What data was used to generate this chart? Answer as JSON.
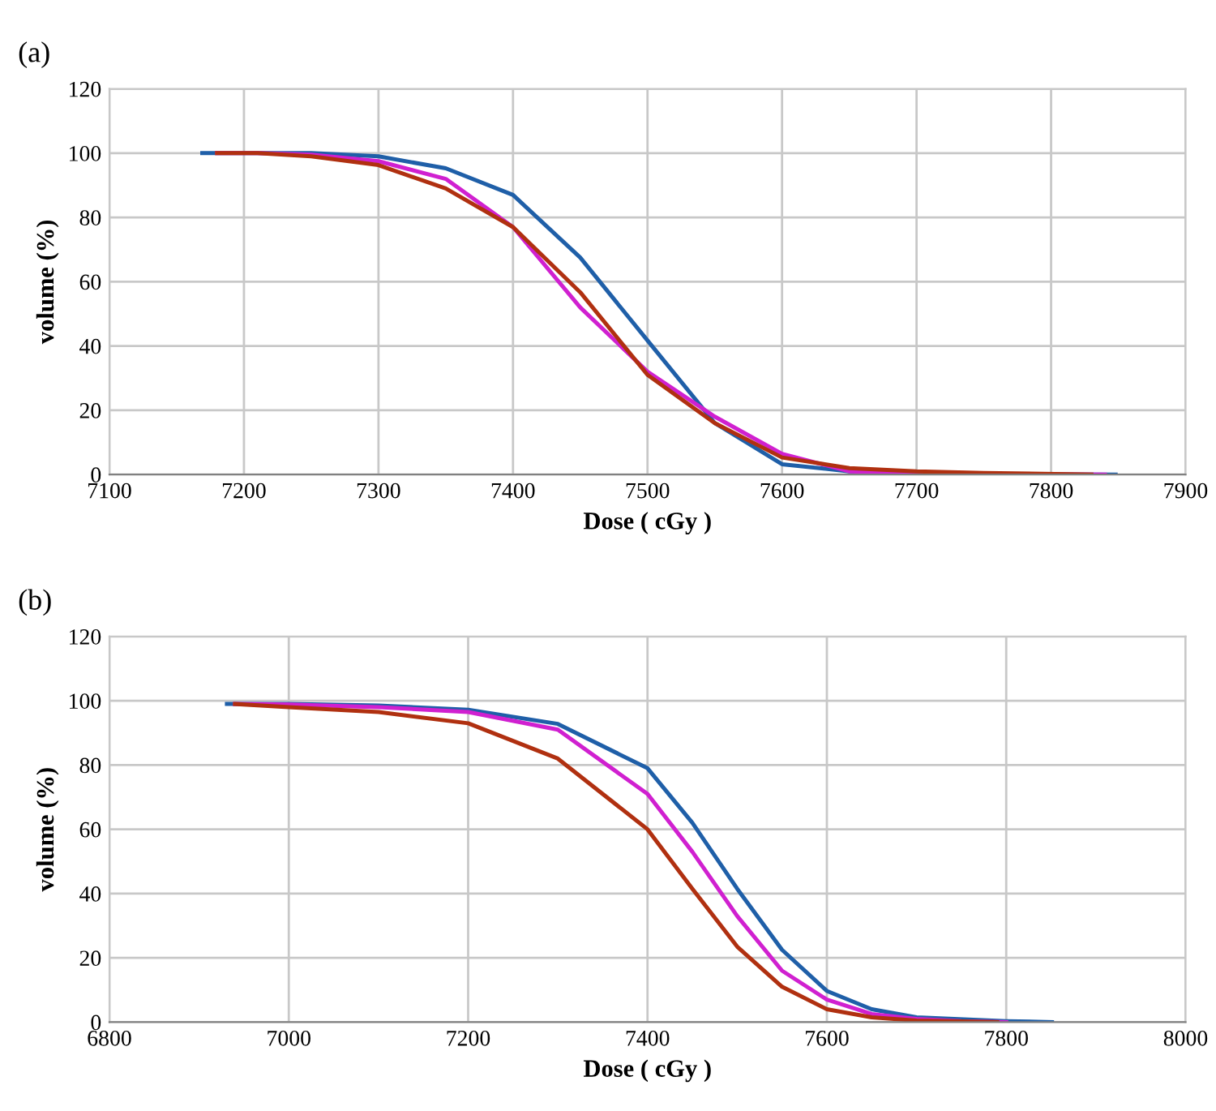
{
  "chart_data": [
    {
      "type": "line",
      "title": "(a)",
      "xlabel": "Dose ( cGy )",
      "ylabel": "volume (%)",
      "xlim": [
        7100,
        7900
      ],
      "xticks": [
        7100,
        7200,
        7300,
        7400,
        7500,
        7600,
        7700,
        7800,
        7900
      ],
      "ylim": [
        0,
        120
      ],
      "yticks": [
        0,
        20,
        40,
        60,
        80,
        100,
        120
      ],
      "grid": true,
      "legend": false,
      "series": [
        {
          "color": "#1f5fa8",
          "x": [
            7169,
            7200,
            7250,
            7300,
            7350,
            7400,
            7450,
            7500,
            7550,
            7600,
            7650,
            7700,
            7750,
            7848
          ],
          "values": [
            100,
            100,
            100,
            99,
            95.3,
            87,
            67.5,
            41.7,
            16,
            3.2,
            1,
            0.3,
            0.1,
            0
          ]
        },
        {
          "color": "#d020d0",
          "x": [
            7180,
            7210,
            7250,
            7300,
            7350,
            7400,
            7450,
            7500,
            7550,
            7600,
            7650,
            7700,
            7750,
            7840
          ],
          "values": [
            100,
            100,
            99.5,
            97.5,
            92,
            77,
            52,
            32,
            18,
            6.4,
            1,
            0.3,
            0.1,
            0
          ]
        },
        {
          "color": "#b03010",
          "x": [
            7180,
            7210,
            7250,
            7300,
            7350,
            7400,
            7450,
            7500,
            7550,
            7600,
            7650,
            7700,
            7750,
            7830
          ],
          "values": [
            100,
            100,
            99,
            96.3,
            89,
            77,
            56.7,
            31,
            16,
            5.3,
            2,
            1,
            0.5,
            0
          ]
        }
      ]
    },
    {
      "type": "line",
      "title": "(b)",
      "xlabel": "Dose ( cGy )",
      "ylabel": "volume (%)",
      "xlim": [
        6800,
        8000
      ],
      "xticks": [
        6800,
        7000,
        7200,
        7400,
        7600,
        7800,
        8000
      ],
      "ylim": [
        0,
        120
      ],
      "yticks": [
        0,
        20,
        40,
        60,
        80,
        100,
        120
      ],
      "grid": true,
      "legend": false,
      "series": [
        {
          "color": "#1f5fa8",
          "x": [
            6931,
            7000,
            7100,
            7200,
            7300,
            7400,
            7450,
            7500,
            7550,
            7600,
            7650,
            7700,
            7800,
            7851
          ],
          "values": [
            99,
            99,
            98.5,
            97.2,
            92.8,
            79,
            62,
            41.5,
            22.5,
            9.7,
            4,
            1.5,
            0.3,
            0
          ]
        },
        {
          "color": "#d020d0",
          "x": [
            6940,
            7000,
            7100,
            7200,
            7300,
            7400,
            7450,
            7500,
            7550,
            7600,
            7650,
            7700,
            7750,
            7800
          ],
          "values": [
            99,
            98.8,
            98,
            96.5,
            91,
            71,
            53,
            33,
            16,
            7,
            2.5,
            1,
            0.3,
            0
          ]
        },
        {
          "color": "#b03010",
          "x": [
            6940,
            7000,
            7100,
            7200,
            7300,
            7400,
            7450,
            7500,
            7550,
            7600,
            7650,
            7700,
            7750,
            7790
          ],
          "values": [
            99,
            98,
            96.5,
            93,
            82,
            60,
            41.5,
            23.5,
            11,
            4,
            1.5,
            0.5,
            0.2,
            0
          ]
        }
      ]
    }
  ]
}
